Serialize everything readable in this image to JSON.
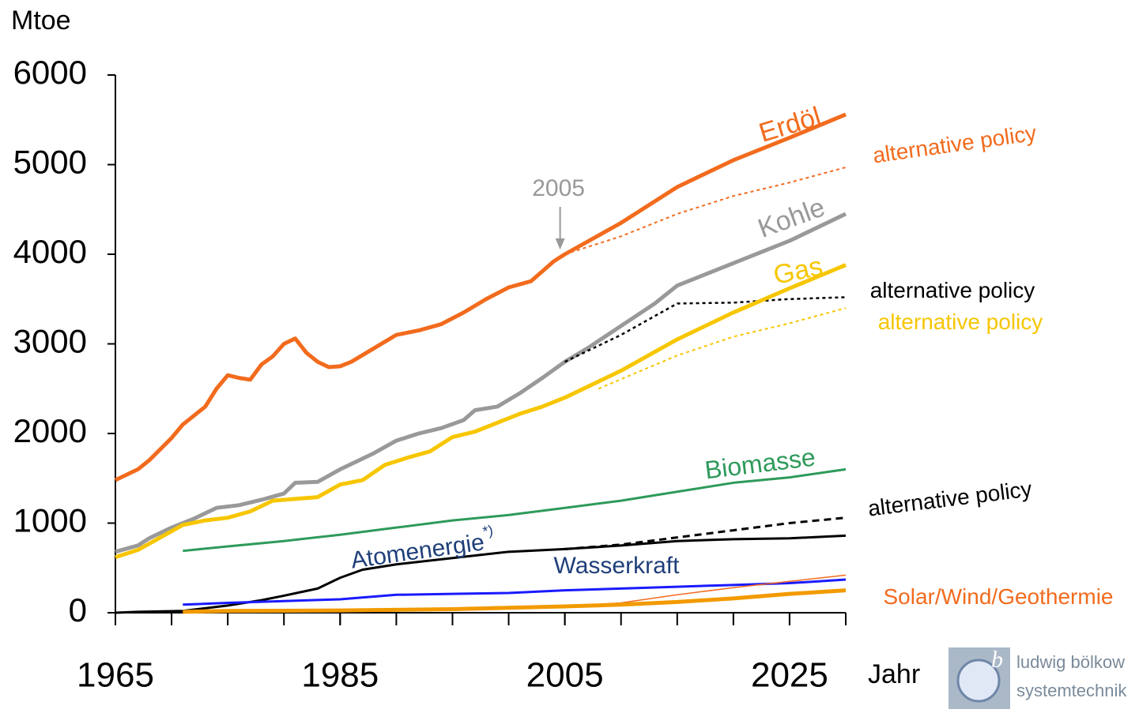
{
  "chart_data": {
    "type": "line",
    "y_label": "Mtoe",
    "x_label": "Jahr",
    "xlim": [
      1965,
      2030
    ],
    "xticks": [
      1965,
      1985,
      2005,
      2025
    ],
    "xminor_step": 5,
    "ylim": [
      0,
      6000
    ],
    "yticks": [
      0,
      1000,
      2000,
      3000,
      4000,
      5000,
      6000
    ],
    "annotations": [
      {
        "text": "2005",
        "x": 2005,
        "y": 4000,
        "color": "#999999"
      }
    ],
    "series": [
      {
        "name": "Erdöl",
        "color": "#f26b1d",
        "width": 5,
        "x": [
          1965,
          1967,
          1968,
          1970,
          1971,
          1972,
          1973,
          1974,
          1975,
          1976,
          1977,
          1978,
          1979,
          1980,
          1981,
          1982,
          1983,
          1984,
          1985,
          1986,
          1988,
          1990,
          1992,
          1994,
          1996,
          1998,
          2000,
          2002,
          2004,
          2005,
          2010,
          2015,
          2020,
          2025,
          2030
        ],
        "values": [
          1480,
          1600,
          1700,
          1950,
          2100,
          2200,
          2300,
          2500,
          2650,
          2620,
          2600,
          2770,
          2860,
          3000,
          3060,
          2900,
          2800,
          2740,
          2750,
          2800,
          2950,
          3100,
          3150,
          3220,
          3350,
          3500,
          3630,
          3700,
          3920,
          4000,
          4350,
          4750,
          5050,
          5300,
          5560
        ]
      },
      {
        "name": "alternative policy",
        "color": "#f26b1d",
        "width": 2,
        "dash": "4 4",
        "x": [
          2005,
          2010,
          2015,
          2020,
          2025,
          2030
        ],
        "values": [
          4000,
          4200,
          4450,
          4650,
          4800,
          4970
        ]
      },
      {
        "name": "Kohle",
        "color": "#999999",
        "width": 5,
        "x": [
          1965,
          1967,
          1968,
          1970,
          1972,
          1974,
          1976,
          1978,
          1980,
          1981,
          1983,
          1985,
          1986,
          1988,
          1990,
          1992,
          1994,
          1996,
          1997,
          1999,
          2001,
          2003,
          2005,
          2007,
          2010,
          2013,
          2015,
          2020,
          2025,
          2030
        ],
        "values": [
          680,
          750,
          830,
          950,
          1050,
          1170,
          1200,
          1260,
          1330,
          1450,
          1460,
          1600,
          1660,
          1780,
          1920,
          2000,
          2060,
          2150,
          2260,
          2300,
          2450,
          2620,
          2800,
          2950,
          3200,
          3450,
          3650,
          3900,
          4150,
          4450
        ]
      },
      {
        "name": "alternative policy",
        "color": "#000000",
        "width": 2.5,
        "dash": "4 4",
        "x": [
          2005,
          2010,
          2015,
          2020,
          2025,
          2030
        ],
        "values": [
          2800,
          3100,
          3450,
          3460,
          3500,
          3520
        ]
      },
      {
        "name": "Gas",
        "color": "#f7c600",
        "width": 5,
        "x": [
          1965,
          1967,
          1969,
          1971,
          1973,
          1975,
          1977,
          1979,
          1981,
          1983,
          1985,
          1987,
          1989,
          1991,
          1993,
          1995,
          1997,
          1999,
          2001,
          2003,
          2005,
          2010,
          2015,
          2020,
          2025,
          2030
        ],
        "values": [
          620,
          700,
          840,
          980,
          1030,
          1060,
          1130,
          1250,
          1270,
          1290,
          1430,
          1480,
          1650,
          1730,
          1800,
          1960,
          2020,
          2120,
          2220,
          2300,
          2400,
          2700,
          3050,
          3350,
          3620,
          3880
        ]
      },
      {
        "name": "alternative policy",
        "color": "#f7c600",
        "width": 2,
        "dash": "4 4",
        "x": [
          2008,
          2015,
          2020,
          2025,
          2030
        ],
        "values": [
          2500,
          2870,
          3080,
          3230,
          3400
        ]
      },
      {
        "name": "Biomasse",
        "color": "#2e9a5a",
        "width": 3,
        "x": [
          1971,
          1975,
          1980,
          1985,
          1990,
          1995,
          2000,
          2005,
          2010,
          2015,
          2020,
          2025,
          2030
        ],
        "values": [
          690,
          740,
          800,
          870,
          950,
          1030,
          1090,
          1170,
          1250,
          1350,
          1450,
          1510,
          1600
        ]
      },
      {
        "name": "Atomenergie",
        "footnote_mark": "*)",
        "color": "#000000",
        "label_color": "#1f3f7a",
        "width": 3,
        "x": [
          1965,
          1967,
          1971,
          1975,
          1978,
          1980,
          1983,
          1985,
          1987,
          1990,
          1995,
          2000,
          2005,
          2010,
          2015,
          2020,
          2025,
          2030
        ],
        "values": [
          0,
          10,
          20,
          80,
          140,
          190,
          270,
          390,
          480,
          540,
          610,
          680,
          710,
          750,
          800,
          820,
          830,
          860
        ]
      },
      {
        "name": "alternative policy",
        "color": "#000000",
        "width": 3,
        "dash": "9 6",
        "x": [
          2005,
          2010,
          2015,
          2020,
          2025,
          2030
        ],
        "values": [
          710,
          760,
          840,
          920,
          1000,
          1060
        ]
      },
      {
        "name": "Wasserkraft",
        "color": "#1a1aff",
        "label_color": "#1f3f7a",
        "width": 3,
        "x": [
          1971,
          1975,
          1980,
          1985,
          1990,
          1995,
          2000,
          2005,
          2010,
          2015,
          2020,
          2025,
          2030
        ],
        "values": [
          90,
          110,
          130,
          150,
          200,
          210,
          220,
          250,
          270,
          290,
          310,
          330,
          370
        ]
      },
      {
        "color": "#f26b1d",
        "width": 1.5,
        "x": [
          2005,
          2010,
          2015,
          2020,
          2025,
          2030
        ],
        "values": [
          70,
          110,
          200,
          280,
          350,
          420
        ]
      },
      {
        "name": "Solar/Wind/Geothermie",
        "color": "#f29a00",
        "label_color": "#f26b1d",
        "width": 5,
        "x": [
          1971,
          1975,
          1985,
          1995,
          2000,
          2005,
          2010,
          2015,
          2020,
          2025,
          2030
        ],
        "values": [
          10,
          20,
          25,
          40,
          55,
          70,
          90,
          120,
          160,
          210,
          250
        ]
      }
    ]
  },
  "logo": {
    "line1": "ludwig bölkow",
    "line2": "systemtechnik"
  }
}
